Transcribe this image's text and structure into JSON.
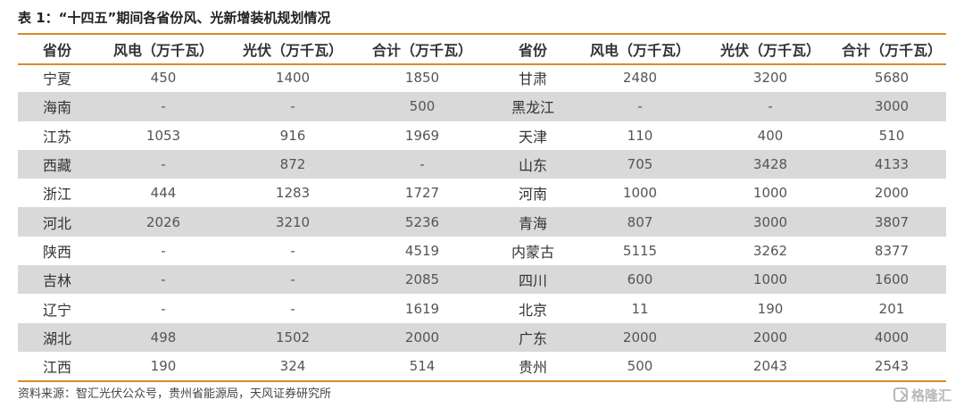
{
  "title": "表 1：“十四五”期间各省份风、光新增装机规划情况",
  "headers": [
    "省份",
    "风电（万千瓦）",
    "光伏（万千瓦）",
    "合计（万千瓦）",
    "省份",
    "风电（万千瓦）",
    "光伏（万千瓦）",
    "合计（万千瓦）"
  ],
  "rows": [
    [
      "宁夏",
      "450",
      "1400",
      "1850",
      "甘肃",
      "2480",
      "3200",
      "5680"
    ],
    [
      "海南",
      "-",
      "-",
      "500",
      "黑龙江",
      "-",
      "-",
      "3000"
    ],
    [
      "江苏",
      "1053",
      "916",
      "1969",
      "天津",
      "110",
      "400",
      "510"
    ],
    [
      "西藏",
      "-",
      "872",
      "-",
      "山东",
      "705",
      "3428",
      "4133"
    ],
    [
      "浙江",
      "444",
      "1283",
      "1727",
      "河南",
      "1000",
      "1000",
      "2000"
    ],
    [
      "河北",
      "2026",
      "3210",
      "5236",
      "青海",
      "807",
      "3000",
      "3807"
    ],
    [
      "陕西",
      "-",
      "-",
      "4519",
      "内蒙古",
      "5115",
      "3262",
      "8377"
    ],
    [
      "吉林",
      "-",
      "-",
      "2085",
      "四川",
      "600",
      "1000",
      "1600"
    ],
    [
      "辽宁",
      "-",
      "-",
      "1619",
      "北京",
      "11",
      "190",
      "201"
    ],
    [
      "湖北",
      "498",
      "1502",
      "2000",
      "广东",
      "2000",
      "2000",
      "4000"
    ],
    [
      "江西",
      "190",
      "324",
      "514",
      "贵州",
      "500",
      "2043",
      "2543"
    ]
  ],
  "source": "资料来源：智汇光伏公众号，贵州省能源局，天风证券研究所",
  "watermark": "格隆汇"
}
